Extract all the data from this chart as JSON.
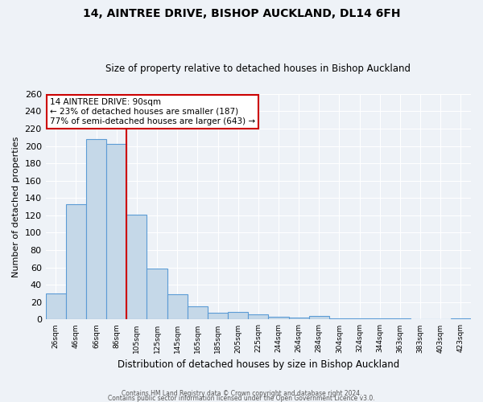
{
  "title": "14, AINTREE DRIVE, BISHOP AUCKLAND, DL14 6FH",
  "subtitle": "Size of property relative to detached houses in Bishop Auckland",
  "bar_labels": [
    "26sqm",
    "46sqm",
    "66sqm",
    "86sqm",
    "105sqm",
    "125sqm",
    "145sqm",
    "165sqm",
    "185sqm",
    "205sqm",
    "225sqm",
    "244sqm",
    "264sqm",
    "284sqm",
    "304sqm",
    "324sqm",
    "344sqm",
    "363sqm",
    "383sqm",
    "403sqm",
    "423sqm"
  ],
  "bar_values": [
    30,
    133,
    208,
    202,
    121,
    59,
    29,
    15,
    8,
    9,
    6,
    3,
    2,
    4,
    1,
    1,
    1,
    1,
    0,
    0,
    1
  ],
  "bar_color": "#c5d8e8",
  "bar_edge_color": "#5b9bd5",
  "ylabel": "Number of detached properties",
  "xlabel": "Distribution of detached houses by size in Bishop Auckland",
  "ylim": [
    0,
    260
  ],
  "yticks": [
    0,
    20,
    40,
    60,
    80,
    100,
    120,
    140,
    160,
    180,
    200,
    220,
    240,
    260
  ],
  "red_line_label": "14 AINTREE DRIVE: 90sqm",
  "annotation_line1": "← 23% of detached houses are smaller (187)",
  "annotation_line2": "77% of semi-detached houses are larger (643) →",
  "annotation_box_color": "#ffffff",
  "annotation_box_edge": "#cc0000",
  "footer1": "Contains HM Land Registry data © Crown copyright and database right 2024.",
  "footer2": "Contains public sector information licensed under the Open Government Licence v3.0.",
  "background_color": "#eef2f7",
  "grid_color": "#ffffff",
  "title_fontsize": 10,
  "subtitle_fontsize": 8.5
}
